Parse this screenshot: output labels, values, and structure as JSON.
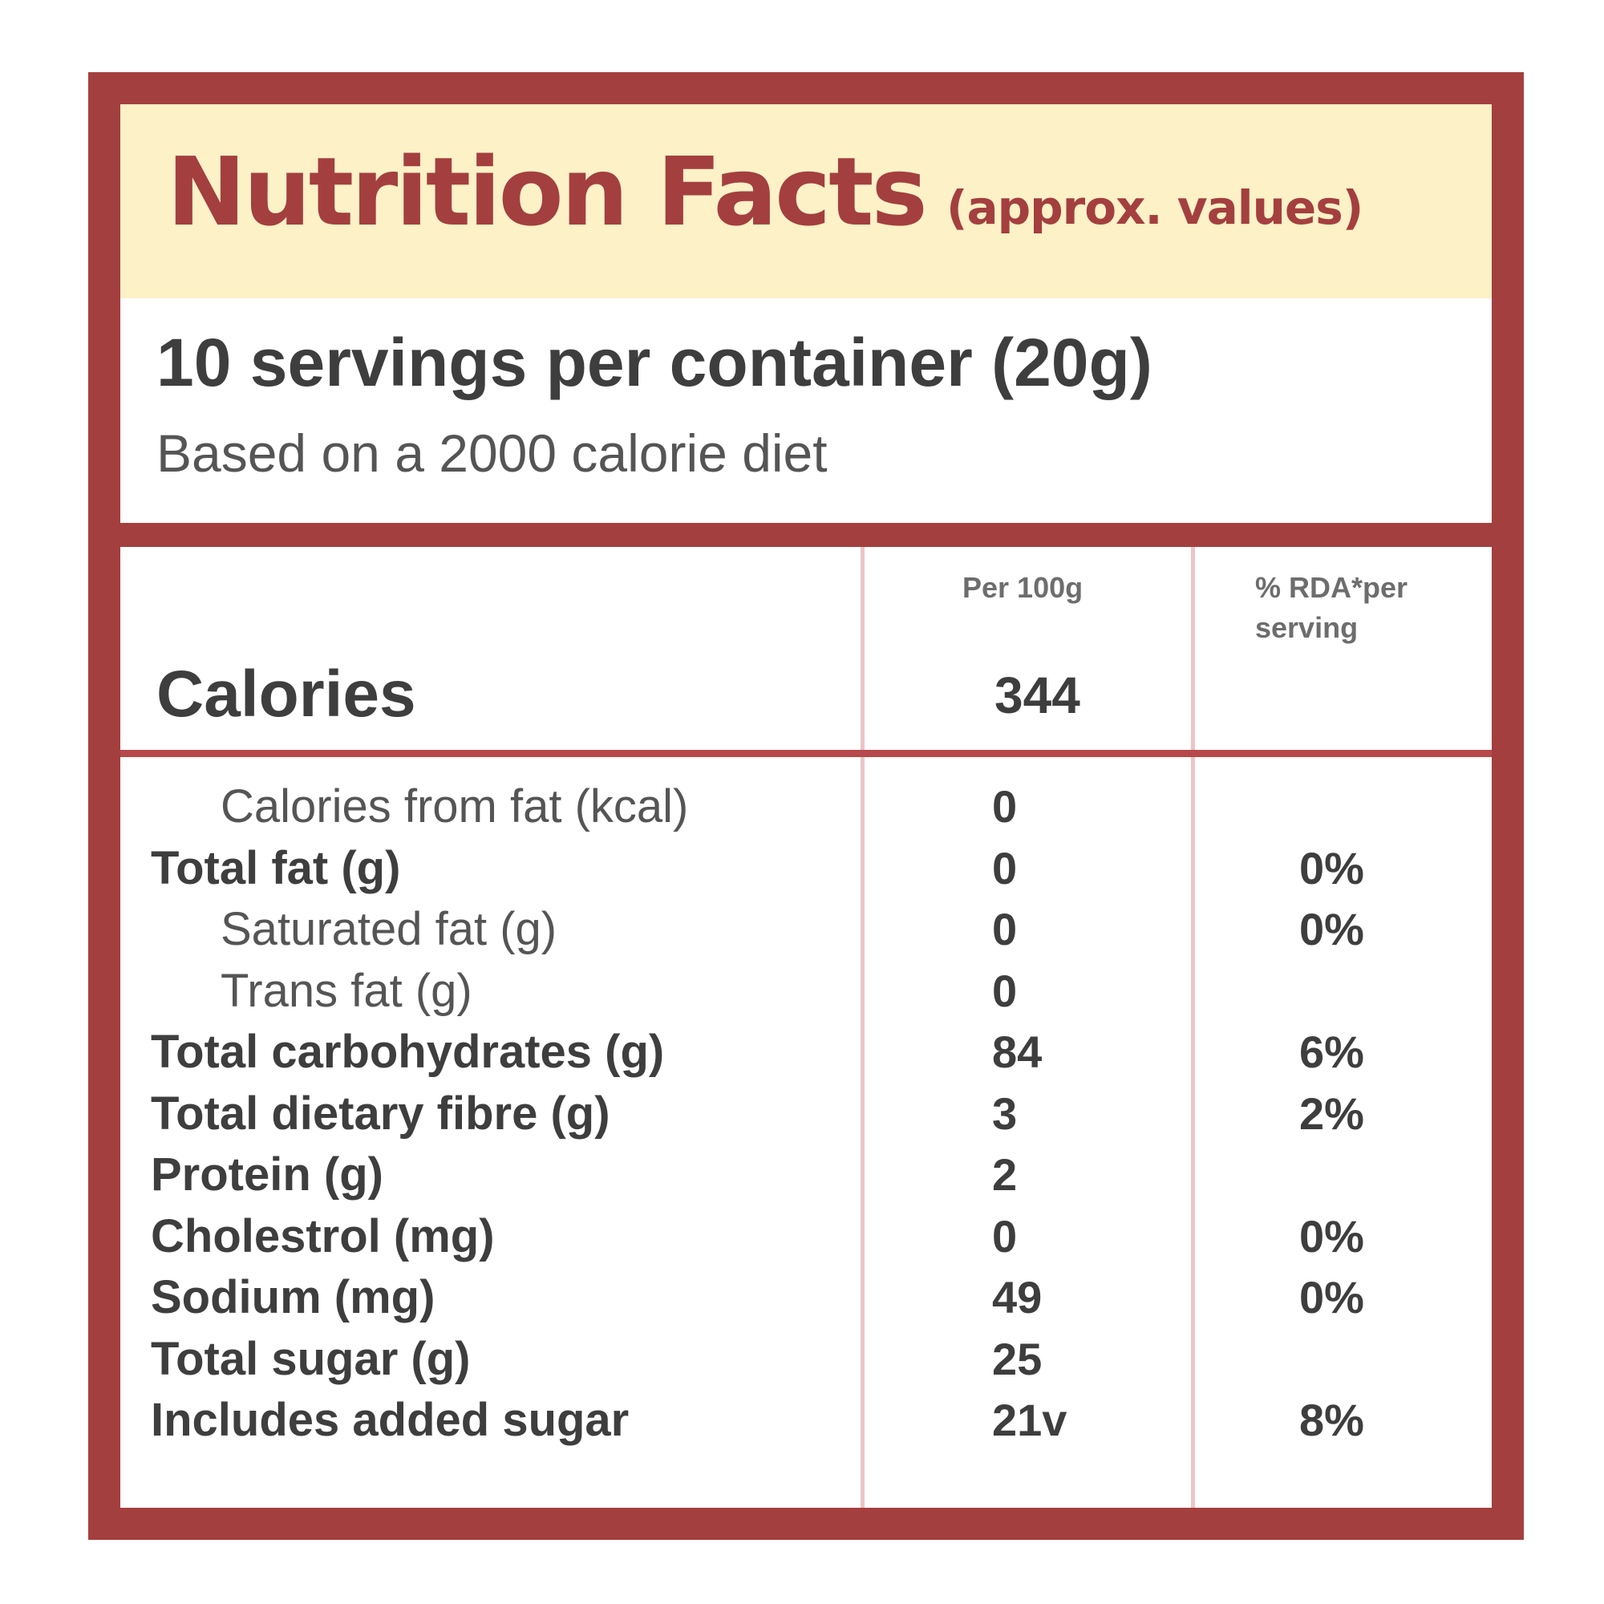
{
  "title": "Nutrition Facts",
  "subtitle": "(approx. values)",
  "servings": "10 servings per container (20g)",
  "basis": "Based on a 2000 calorie diet",
  "columns": {
    "per_100g": "Per 100g",
    "rda": "% RDA*per serving"
  },
  "calories": {
    "label": "Calories",
    "value": "344"
  },
  "rows": [
    {
      "label": "Calories from fat (kcal)",
      "value": "0",
      "rda": ""
    },
    {
      "label": "Total fat (g)",
      "value": "0",
      "rda": "0%"
    },
    {
      "label": "Saturated fat (g)",
      "value": "0",
      "rda": "0%"
    },
    {
      "label": "Trans fat (g)",
      "value": "0",
      "rda": ""
    },
    {
      "label": "Total carbohydrates (g)",
      "value": "84",
      "rda": "6%"
    },
    {
      "label": "Total dietary fibre (g)",
      "value": "3",
      "rda": "2%"
    },
    {
      "label": "Protein (g)",
      "value": "2",
      "rda": ""
    },
    {
      "label": "Cholestrol (mg)",
      "value": "0",
      "rda": "0%"
    },
    {
      "label": "Sodium (mg)",
      "value": "49",
      "rda": "0%"
    },
    {
      "label": "Total sugar (g)",
      "value": "25",
      "rda": ""
    },
    {
      "label": "Includes added sugar",
      "value": "21v",
      "rda": "8%"
    }
  ],
  "colors": {
    "frame": "#a43f3f",
    "title_band": "#fdf1c7",
    "column_lines": "#ecc5c5",
    "text": "#3e3e3e"
  }
}
